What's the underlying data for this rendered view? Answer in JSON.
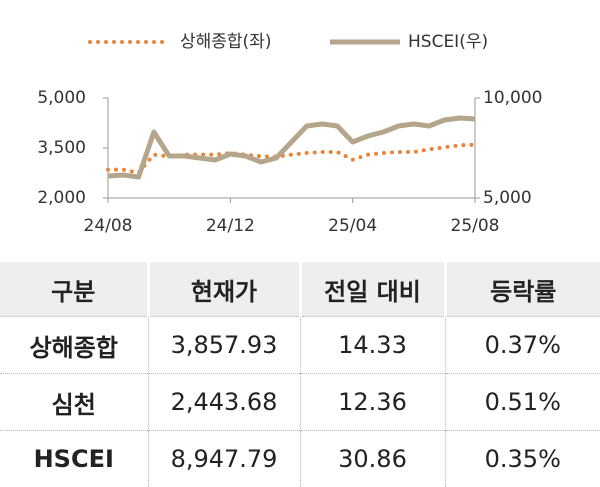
{
  "chart_data": {
    "type": "line",
    "categories": [
      "24/08",
      null,
      null,
      null,
      null,
      null,
      null,
      null,
      "24/12",
      null,
      null,
      null,
      null,
      null,
      null,
      null,
      "25/04",
      null,
      null,
      null,
      null,
      null,
      null,
      null,
      "25/08"
    ],
    "series": [
      {
        "name": "상해종합(좌)",
        "color": "#e8853a",
        "style": "dotted",
        "axis": "y",
        "values": [
          2850,
          2850,
          2760,
          3300,
          3250,
          3300,
          3300,
          3300,
          3350,
          3300,
          3250,
          3240,
          3300,
          3350,
          3380,
          3380,
          3150,
          3300,
          3350,
          3380,
          3380,
          3460,
          3520,
          3580,
          3600
        ]
      },
      {
        "name": "HSCEI(우)",
        "color": "#b5a68b",
        "style": "solid",
        "axis": "y2",
        "values": [
          6100,
          6150,
          6050,
          8300,
          7100,
          7100,
          7000,
          6900,
          7200,
          7100,
          6800,
          7000,
          7800,
          8600,
          8700,
          8600,
          7800,
          8100,
          8300,
          8600,
          8700,
          8600,
          8900,
          9000,
          8950
        ]
      }
    ],
    "ylim": [
      2000,
      5000
    ],
    "yticks": [
      {
        "value": 2000,
        "label": "2,000"
      },
      {
        "value": 3500,
        "label": "3,500"
      },
      {
        "value": 5000,
        "label": "5,000"
      }
    ],
    "y2lim": [
      5000,
      10000
    ],
    "y2ticks": [
      {
        "value": 5000,
        "label": "5,000"
      },
      {
        "value": 10000,
        "label": "10,000"
      }
    ],
    "legend": "top"
  },
  "table": {
    "header": [
      "구분",
      "현재가",
      "전일 대비",
      "등락률"
    ],
    "rows": [
      [
        "상해종합",
        "3,857.93",
        "14.33",
        "0.37%"
      ],
      [
        "심천",
        "2,443.68",
        "12.36",
        "0.51%"
      ],
      [
        "HSCEI",
        "8,947.79",
        "30.86",
        "0.35%"
      ]
    ]
  }
}
